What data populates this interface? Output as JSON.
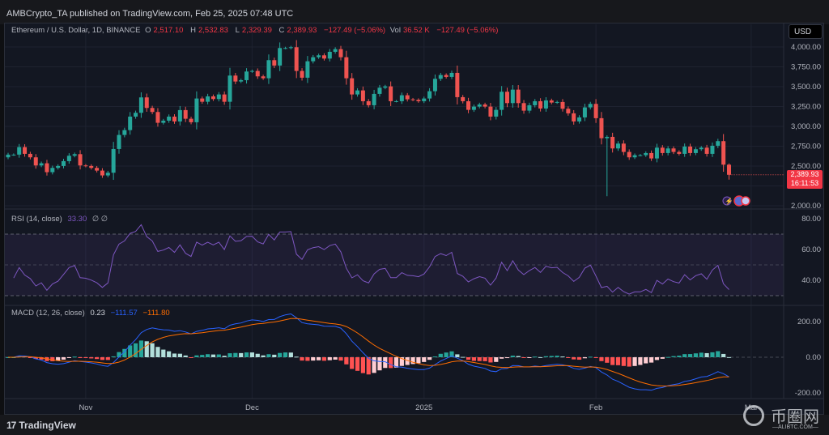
{
  "header": {
    "published": "AMBCrypto_TA published on TradingView.com, Feb 25, 2025 07:48 UTC"
  },
  "legend": {
    "symbol": "Ethereum / U.S. Dollar, 1D, BINANCE",
    "o_label": "O",
    "o": "2,517.10",
    "h_label": "H",
    "h": "2,532.83",
    "l_label": "L",
    "l": "2,329.39",
    "c_label": "C",
    "c": "2,389.93",
    "change": "−127.49 (−5.06%)",
    "vol_label": "Vol",
    "vol": "36.52 K",
    "vol_change": "−127.49 (−5.06%)"
  },
  "currency": "USD",
  "last_price": {
    "price": "2,389.93",
    "countdown": "16:11:53"
  },
  "price_axis": [
    {
      "value": 4000,
      "label": "4,000.00"
    },
    {
      "value": 3750,
      "label": "3,750.00"
    },
    {
      "value": 3500,
      "label": "3,500.00"
    },
    {
      "value": 3250,
      "label": "3,250.00"
    },
    {
      "value": 3000,
      "label": "3,000.00"
    },
    {
      "value": 2750,
      "label": "2,750.00"
    },
    {
      "value": 2500,
      "label": "2,500.00"
    },
    {
      "value": 2000,
      "label": "2,000.00"
    }
  ],
  "rsi": {
    "label": "RSI (14, close)",
    "value": "33.30",
    "extras": "∅ ∅",
    "bands": [
      70,
      50,
      30
    ],
    "ticks": [
      {
        "value": 80,
        "label": "80.00"
      },
      {
        "value": 60,
        "label": "60.00"
      },
      {
        "value": 40,
        "label": "40.00"
      }
    ]
  },
  "macd": {
    "label": "MACD (12, 26, close)",
    "histogram": "0.23",
    "macd": "−111.57",
    "signal": "−111.80",
    "ticks": [
      {
        "value": 200,
        "label": "200.00"
      },
      {
        "value": 0,
        "label": "0.00"
      },
      {
        "value": -200,
        "label": "-200.00"
      }
    ]
  },
  "time_axis": [
    {
      "label": "Nov",
      "date": "2024-11-01"
    },
    {
      "label": "Dec",
      "date": "2024-12-01"
    },
    {
      "label": "2025",
      "date": "2025-01-01"
    },
    {
      "label": "Feb",
      "date": "2025-02-01"
    },
    {
      "label": "Mar",
      "date": "2025-03-01"
    }
  ],
  "footer": {
    "brand": "TradingView"
  },
  "watermark": {
    "text": "币圈网",
    "sub": "—ALIBTC.COM—"
  },
  "colors": {
    "up": "#26a69a",
    "down": "#ef5350",
    "rsi": "#7e57c2",
    "macd": "#2962ff",
    "signal": "#ff6d00",
    "hist_up_strong": "#26a69a",
    "hist_up_weak": "#b2dfdb",
    "hist_down_strong": "#ff5252",
    "hist_down_weak": "#ffcdd2",
    "background": "#131722"
  },
  "chart_data": {
    "type": "candlestick",
    "title": "Ethereum / U.S. Dollar, 1D, BINANCE",
    "interval": "1D",
    "first_date": "2024-10-18",
    "last_date": "2025-02-25",
    "ylim": [
      1950,
      4150
    ],
    "grid": true,
    "first_open": 2610,
    "close": [
      2644,
      2644,
      2739,
      2654,
      2610,
      2508,
      2535,
      2423,
      2477,
      2501,
      2562,
      2630,
      2650,
      2508,
      2501,
      2477,
      2443,
      2382,
      2416,
      2715,
      2892,
      2953,
      3123,
      3171,
      3365,
      3232,
      3181,
      3045,
      3072,
      3123,
      3062,
      3205,
      3096,
      3052,
      3351,
      3310,
      3378,
      3344,
      3402,
      3310,
      3640,
      3565,
      3582,
      3691,
      3698,
      3630,
      3606,
      3834,
      3766,
      3987,
      3987,
      3997,
      3698,
      3613,
      3820,
      3871,
      3895,
      3854,
      3939,
      3973,
      3871,
      3606,
      3402,
      3453,
      3317,
      3266,
      3409,
      3487,
      3504,
      3317,
      3317,
      3392,
      3341,
      3334,
      3317,
      3351,
      3443,
      3599,
      3647,
      3623,
      3674,
      3368,
      3317,
      3208,
      3249,
      3276,
      3249,
      3123,
      3208,
      3436,
      3293,
      3463,
      3293,
      3198,
      3266,
      3317,
      3225,
      3327,
      3300,
      3307,
      3222,
      3164,
      3062,
      3113,
      3239,
      3283,
      3103,
      2851,
      2868,
      2722,
      2783,
      2678,
      2610,
      2637,
      2637,
      2664,
      2596,
      2732,
      2664,
      2722,
      2678,
      2654,
      2746,
      2664,
      2712,
      2732,
      2654,
      2756,
      2814,
      2517.42,
      2389.93
    ],
    "notable_lows": [
      {
        "date": "2025-02-03",
        "low": 2120
      },
      {
        "date": "2025-02-25",
        "low": 2329.39
      }
    ],
    "notable_highs": [
      {
        "date": "2025-02-25",
        "high": 2532.83
      }
    ]
  }
}
